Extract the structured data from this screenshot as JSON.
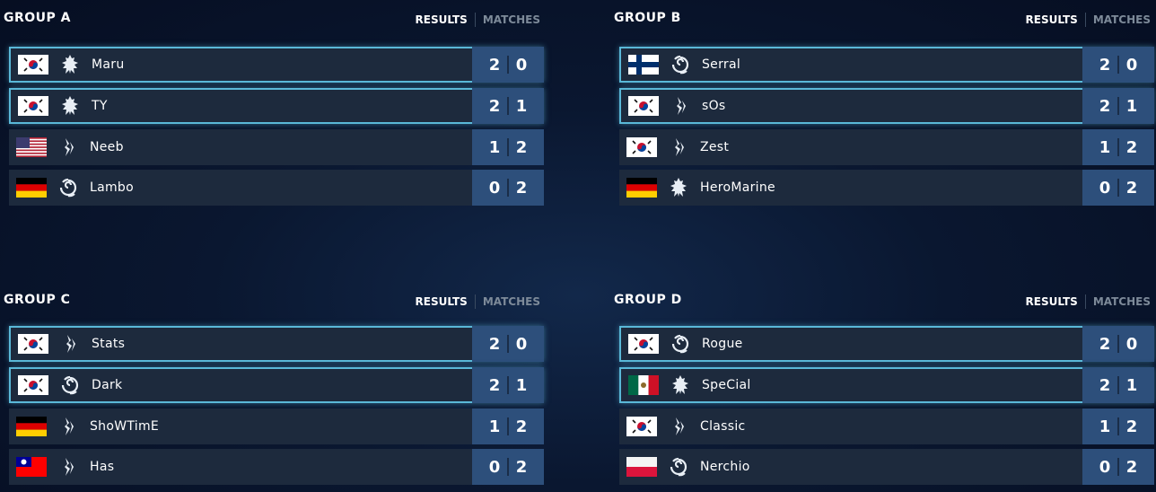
{
  "tabs": {
    "results": "RESULTS",
    "matches": "MATCHES"
  },
  "colors": {
    "row_bg": "#1d2a3d",
    "score_bg": "#2d4f7b",
    "qualified_border": "#5ab8d8"
  },
  "groups": [
    {
      "title": "GROUP A",
      "players": [
        {
          "name": "Maru",
          "flag": "kr",
          "race": "terran",
          "wins": "2",
          "losses": "0",
          "qualified": true
        },
        {
          "name": "TY",
          "flag": "kr",
          "race": "terran",
          "wins": "2",
          "losses": "1",
          "qualified": true
        },
        {
          "name": "Neeb",
          "flag": "us",
          "race": "protoss",
          "wins": "1",
          "losses": "2",
          "qualified": false
        },
        {
          "name": "Lambo",
          "flag": "de",
          "race": "zerg",
          "wins": "0",
          "losses": "2",
          "qualified": false
        }
      ]
    },
    {
      "title": "GROUP B",
      "players": [
        {
          "name": "Serral",
          "flag": "fi",
          "race": "zerg",
          "wins": "2",
          "losses": "0",
          "qualified": true
        },
        {
          "name": "sOs",
          "flag": "kr",
          "race": "protoss",
          "wins": "2",
          "losses": "1",
          "qualified": true
        },
        {
          "name": "Zest",
          "flag": "kr",
          "race": "protoss",
          "wins": "1",
          "losses": "2",
          "qualified": false
        },
        {
          "name": "HeroMarine",
          "flag": "de",
          "race": "terran",
          "wins": "0",
          "losses": "2",
          "qualified": false
        }
      ]
    },
    {
      "title": "GROUP C",
      "players": [
        {
          "name": "Stats",
          "flag": "kr",
          "race": "protoss",
          "wins": "2",
          "losses": "0",
          "qualified": true
        },
        {
          "name": "Dark",
          "flag": "kr",
          "race": "zerg",
          "wins": "2",
          "losses": "1",
          "qualified": true
        },
        {
          "name": "ShoWTimE",
          "flag": "de",
          "race": "protoss",
          "wins": "1",
          "losses": "2",
          "qualified": false
        },
        {
          "name": "Has",
          "flag": "tw",
          "race": "protoss",
          "wins": "0",
          "losses": "2",
          "qualified": false
        }
      ]
    },
    {
      "title": "GROUP D",
      "players": [
        {
          "name": "Rogue",
          "flag": "kr",
          "race": "zerg",
          "wins": "2",
          "losses": "0",
          "qualified": true
        },
        {
          "name": "SpeCial",
          "flag": "mx",
          "race": "terran",
          "wins": "2",
          "losses": "1",
          "qualified": true
        },
        {
          "name": "Classic",
          "flag": "kr",
          "race": "protoss",
          "wins": "1",
          "losses": "2",
          "qualified": false
        },
        {
          "name": "Nerchio",
          "flag": "pl",
          "race": "zerg",
          "wins": "0",
          "losses": "2",
          "qualified": false
        }
      ]
    }
  ]
}
